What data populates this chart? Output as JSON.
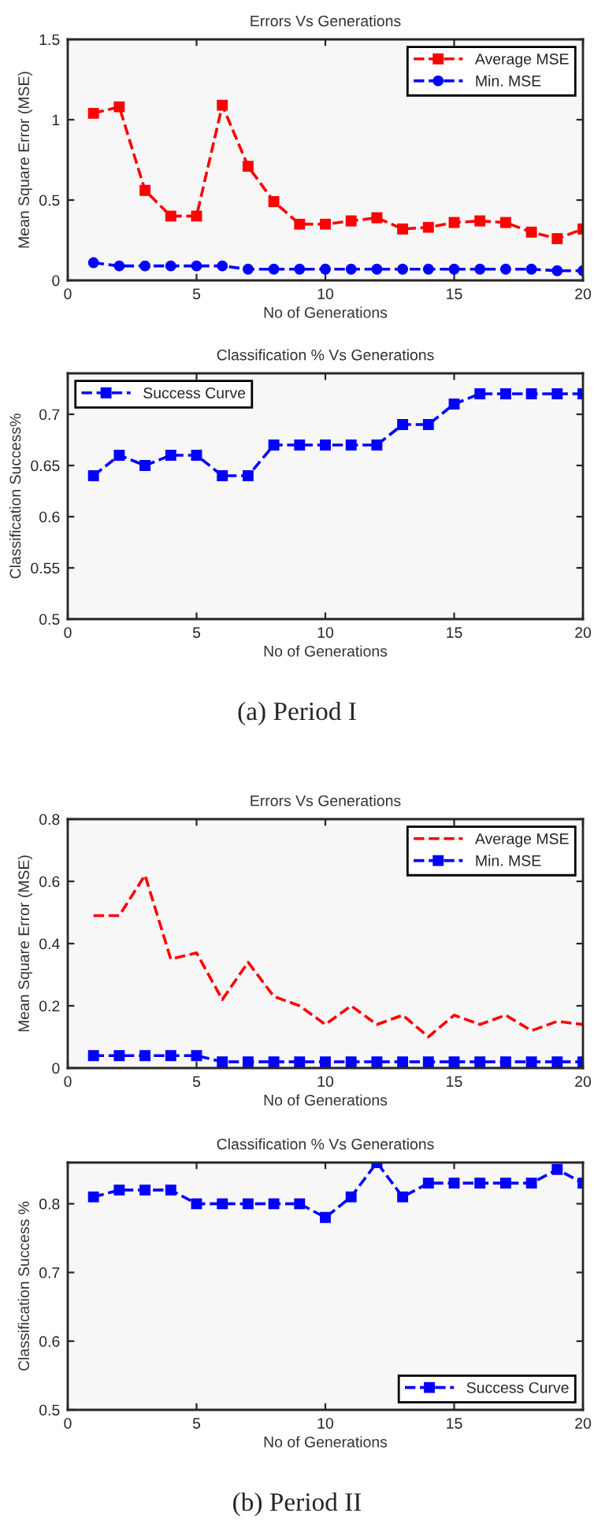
{
  "chart_data": [
    {
      "type": "line",
      "title": "Errors Vs Generations",
      "xlabel": "No of Generations",
      "ylabel": "Mean Square Error (MSE)",
      "x": [
        1,
        2,
        3,
        4,
        5,
        6,
        7,
        8,
        9,
        10,
        11,
        12,
        13,
        14,
        15,
        16,
        17,
        18,
        19,
        20
      ],
      "xlim": [
        0,
        20
      ],
      "xticks": [
        0,
        5,
        10,
        15,
        20
      ],
      "ylim": [
        0,
        1.5
      ],
      "yticks": [
        0,
        0.5,
        1,
        1.5
      ],
      "legend": "top right",
      "line_style": "dashed",
      "grid": false,
      "series": [
        {
          "name": "Average MSE",
          "color": "#ff0000",
          "marker": "square",
          "values": [
            1.04,
            1.08,
            0.56,
            0.4,
            0.4,
            1.09,
            0.71,
            0.49,
            0.35,
            0.35,
            0.37,
            0.39,
            0.32,
            0.33,
            0.36,
            0.37,
            0.36,
            0.3,
            0.26,
            0.32
          ]
        },
        {
          "name": "Min. MSE",
          "color": "#0000ff",
          "marker": "circle",
          "values": [
            0.11,
            0.09,
            0.09,
            0.09,
            0.09,
            0.09,
            0.07,
            0.07,
            0.07,
            0.07,
            0.07,
            0.07,
            0.07,
            0.07,
            0.07,
            0.07,
            0.07,
            0.07,
            0.06,
            0.06
          ]
        }
      ]
    },
    {
      "type": "line",
      "title": "Classification % Vs Generations",
      "xlabel": "No of Generations",
      "ylabel": "Classification Success%",
      "x": [
        1,
        2,
        3,
        4,
        5,
        6,
        7,
        8,
        9,
        10,
        11,
        12,
        13,
        14,
        15,
        16,
        17,
        18,
        19,
        20
      ],
      "xlim": [
        0,
        20
      ],
      "xticks": [
        0,
        5,
        10,
        15,
        20
      ],
      "ylim": [
        0.5,
        0.74
      ],
      "yticks": [
        0.5,
        0.55,
        0.6,
        0.65,
        0.7
      ],
      "legend": "top left",
      "line_style": "dashed",
      "grid": false,
      "annotations": [
        "(a) Period I"
      ],
      "series": [
        {
          "name": "Success Curve",
          "color": "#0000ff",
          "marker": "square",
          "values": [
            0.64,
            0.66,
            0.65,
            0.66,
            0.66,
            0.64,
            0.64,
            0.67,
            0.67,
            0.67,
            0.67,
            0.67,
            0.69,
            0.69,
            0.71,
            0.72,
            0.72,
            0.72,
            0.72,
            0.72
          ]
        }
      ]
    },
    {
      "type": "line",
      "title": "Errors Vs Generations",
      "xlabel": "No of Generations",
      "ylabel": "Mean Square Error (MSE)",
      "x": [
        1,
        2,
        3,
        4,
        5,
        6,
        7,
        8,
        9,
        10,
        11,
        12,
        13,
        14,
        15,
        16,
        17,
        18,
        19,
        20
      ],
      "xlim": [
        0,
        20
      ],
      "xticks": [
        0,
        5,
        10,
        15,
        20
      ],
      "ylim": [
        0,
        0.8
      ],
      "yticks": [
        0,
        0.2,
        0.4,
        0.6,
        0.8
      ],
      "legend": "top right",
      "line_style": "dashed",
      "grid": false,
      "series": [
        {
          "name": "Average MSE",
          "color": "#ff0000",
          "marker": "none",
          "values": [
            0.49,
            0.49,
            0.62,
            0.35,
            0.37,
            0.22,
            0.34,
            0.23,
            0.2,
            0.14,
            0.2,
            0.14,
            0.17,
            0.1,
            0.17,
            0.14,
            0.17,
            0.12,
            0.15,
            0.14
          ]
        },
        {
          "name": "Min. MSE",
          "color": "#0000ff",
          "marker": "square",
          "values": [
            0.04,
            0.04,
            0.04,
            0.04,
            0.04,
            0.02,
            0.02,
            0.02,
            0.02,
            0.02,
            0.02,
            0.02,
            0.02,
            0.02,
            0.02,
            0.02,
            0.02,
            0.02,
            0.02,
            0.02
          ]
        }
      ]
    },
    {
      "type": "line",
      "title": "Classification % Vs Generations",
      "xlabel": "No of Generations",
      "ylabel": "Classification Success %",
      "x": [
        1,
        2,
        3,
        4,
        5,
        6,
        7,
        8,
        9,
        10,
        11,
        12,
        13,
        14,
        15,
        16,
        17,
        18,
        19,
        20
      ],
      "xlim": [
        0,
        20
      ],
      "xticks": [
        0,
        5,
        10,
        15,
        20
      ],
      "ylim": [
        0.5,
        0.86
      ],
      "yticks": [
        0.5,
        0.6,
        0.7,
        0.8
      ],
      "legend": "bottom right",
      "line_style": "dashed",
      "grid": false,
      "annotations": [
        "(b) Period II"
      ],
      "series": [
        {
          "name": "Success Curve",
          "color": "#0000ff",
          "marker": "square",
          "values": [
            0.81,
            0.82,
            0.82,
            0.82,
            0.8,
            0.8,
            0.8,
            0.8,
            0.8,
            0.78,
            0.81,
            0.86,
            0.81,
            0.83,
            0.83,
            0.83,
            0.83,
            0.83,
            0.85,
            0.83
          ]
        }
      ]
    }
  ]
}
